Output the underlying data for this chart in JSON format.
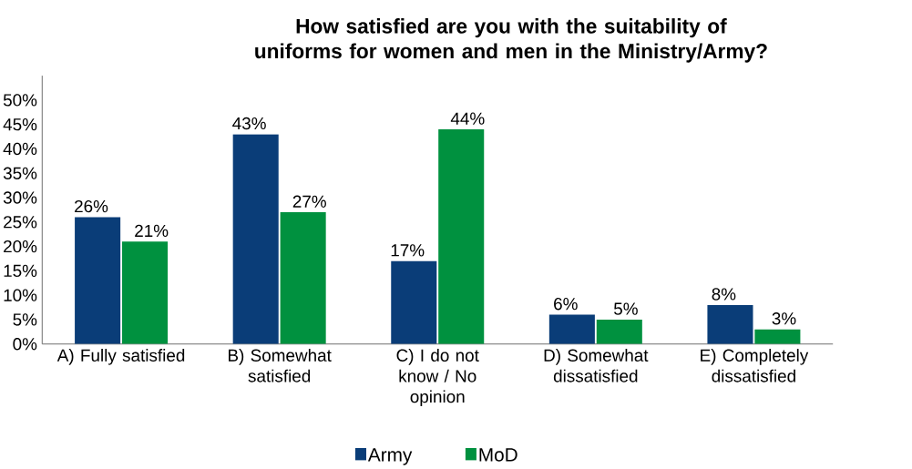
{
  "chart_data": {
    "type": "bar",
    "title": "How satisfied are you with the suitability of uniforms for women and men in the Ministry/Army?",
    "categories": [
      "A) Fully satisfied",
      "B) Somewhat satisfied",
      "C) I do not know / No opinion",
      "D) Somewhat dissatisfied",
      "E) Completely dissatisfied"
    ],
    "series": [
      {
        "name": "Army",
        "color": "#0a3d78",
        "values": [
          26,
          43,
          17,
          6,
          8
        ],
        "value_labels": [
          "26%",
          "43%",
          "17%",
          "6%",
          "8%"
        ]
      },
      {
        "name": "MoD",
        "color": "#00913f",
        "values": [
          21,
          27,
          44,
          5,
          3
        ],
        "value_labels": [
          "21%",
          "27%",
          "44%",
          "5%",
          "3%"
        ]
      }
    ],
    "ylim": [
      0,
      55
    ],
    "yticks": [
      {
        "value": 0,
        "label": "0%"
      },
      {
        "value": 5,
        "label": "5%"
      },
      {
        "value": 10,
        "label": "10%"
      },
      {
        "value": 15,
        "label": "15%"
      },
      {
        "value": 20,
        "label": "20%"
      },
      {
        "value": 25,
        "label": "25%"
      },
      {
        "value": 30,
        "label": "30%"
      },
      {
        "value": 35,
        "label": "35%"
      },
      {
        "value": 40,
        "label": "40%"
      },
      {
        "value": 45,
        "label": "45%"
      },
      {
        "value": 50,
        "label": "50%"
      }
    ],
    "legend": "bottom"
  }
}
